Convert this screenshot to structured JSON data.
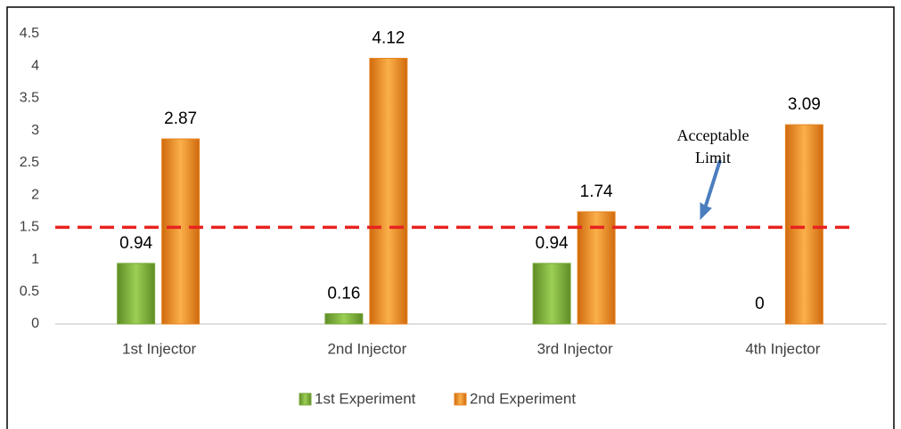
{
  "chart_data": {
    "type": "bar",
    "categories": [
      "1st Injector",
      "2nd Injector",
      "3rd Injector",
      "4th Injector"
    ],
    "series": [
      {
        "name": "1st Experiment",
        "color": "#78a83a",
        "values": [
          0.94,
          0.16,
          0.94,
          0
        ]
      },
      {
        "name": "2nd Experiment",
        "color": "#e8821e",
        "values": [
          2.87,
          4.12,
          1.74,
          3.09
        ]
      }
    ],
    "ylim": [
      0,
      4.5
    ],
    "yticks": [
      0,
      0.5,
      1,
      1.5,
      2,
      2.5,
      3,
      3.5,
      4,
      4.5
    ],
    "grid": false,
    "legend": "bottom",
    "threshold": {
      "value": 1.5,
      "color": "#e8231f",
      "label": [
        "Acceptable",
        "Limit"
      ]
    }
  }
}
